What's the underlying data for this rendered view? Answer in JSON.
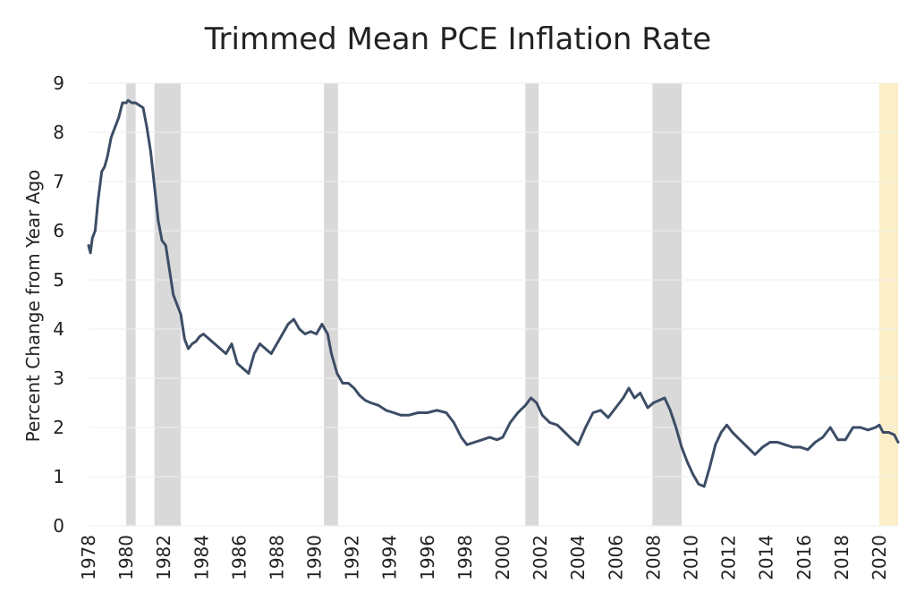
{
  "chart_data": {
    "type": "line",
    "title": "Trimmed Mean PCE Inflation Rate",
    "xlabel": "",
    "ylabel": "Percent Change from Year Ago",
    "xlim": [
      1978.0,
      2021.0
    ],
    "ylim": [
      0,
      9
    ],
    "y_ticks": [
      "0",
      "1",
      "2",
      "3",
      "4",
      "5",
      "6",
      "7",
      "8",
      "9"
    ],
    "x_ticks": [
      "1978",
      "1980",
      "1982",
      "1984",
      "1986",
      "1988",
      "1990",
      "1992",
      "1994",
      "1996",
      "1998",
      "2000",
      "2002",
      "2004",
      "2006",
      "2008",
      "2010",
      "2012",
      "2014",
      "2016",
      "2018",
      "2020"
    ],
    "grid": "horizontal",
    "legend": "none",
    "colors": {
      "line": "#3d4d66",
      "recession": "#d9d9d9",
      "covid": "#fcefc7",
      "grid": "#eeeeee",
      "text": "#222222"
    },
    "shaded_periods": [
      {
        "start": 1980.0,
        "end": 1980.5,
        "kind": "recession"
      },
      {
        "start": 1981.5,
        "end": 1982.9,
        "kind": "recession"
      },
      {
        "start": 1990.5,
        "end": 1991.25,
        "kind": "recession"
      },
      {
        "start": 2001.2,
        "end": 2001.9,
        "kind": "recession"
      },
      {
        "start": 2007.95,
        "end": 2009.5,
        "kind": "recession"
      },
      {
        "start": 2020.0,
        "end": 2021.0,
        "kind": "covid"
      }
    ],
    "series": [
      {
        "x": [
          1978.0,
          1978.1,
          1978.2,
          1978.35,
          1978.5,
          1978.7,
          1978.85,
          1979.0,
          1979.2,
          1979.4,
          1979.6,
          1979.8,
          1980.0,
          1980.1,
          1980.3,
          1980.5,
          1980.7,
          1980.9,
          1981.1,
          1981.3,
          1981.5,
          1981.7,
          1981.9,
          1982.1,
          1982.3,
          1982.5,
          1982.7,
          1982.9,
          1983.1,
          1983.3,
          1983.5,
          1983.7,
          1983.9,
          1984.1,
          1984.4,
          1984.7,
          1985.0,
          1985.3,
          1985.6,
          1985.9,
          1986.2,
          1986.5,
          1986.8,
          1987.1,
          1987.4,
          1987.7,
          1988.0,
          1988.3,
          1988.6,
          1988.9,
          1989.2,
          1989.5,
          1989.8,
          1990.1,
          1990.4,
          1990.7,
          1990.9,
          1991.2,
          1991.5,
          1991.8,
          1992.1,
          1992.4,
          1992.7,
          1993.0,
          1993.4,
          1993.8,
          1994.2,
          1994.6,
          1995.0,
          1995.5,
          1996.0,
          1996.5,
          1997.0,
          1997.4,
          1997.8,
          1998.1,
          1998.5,
          1998.9,
          1999.3,
          1999.7,
          2000.0,
          2000.4,
          2000.8,
          2001.2,
          2001.5,
          2001.8,
          2002.1,
          2002.5,
          2002.9,
          2003.3,
          2003.7,
          2004.0,
          2004.4,
          2004.8,
          2005.2,
          2005.6,
          2006.0,
          2006.4,
          2006.7,
          2007.0,
          2007.3,
          2007.7,
          2008.0,
          2008.3,
          2008.6,
          2008.9,
          2009.2,
          2009.5,
          2009.8,
          2010.1,
          2010.4,
          2010.7,
          2011.0,
          2011.3,
          2011.6,
          2011.9,
          2012.2,
          2012.6,
          2013.0,
          2013.4,
          2013.8,
          2014.2,
          2014.6,
          2015.0,
          2015.4,
          2015.8,
          2016.2,
          2016.6,
          2017.0,
          2017.4,
          2017.8,
          2018.2,
          2018.6,
          2019.0,
          2019.4,
          2019.8,
          2020.0,
          2020.2,
          2020.5,
          2020.8,
          2021.0
        ],
        "values": [
          5.7,
          5.55,
          5.85,
          6.0,
          6.6,
          7.2,
          7.3,
          7.5,
          7.9,
          8.1,
          8.3,
          8.6,
          8.6,
          8.65,
          8.6,
          8.6,
          8.55,
          8.5,
          8.1,
          7.6,
          6.9,
          6.2,
          5.8,
          5.7,
          5.2,
          4.7,
          4.5,
          4.3,
          3.8,
          3.6,
          3.7,
          3.75,
          3.85,
          3.9,
          3.8,
          3.7,
          3.6,
          3.5,
          3.7,
          3.3,
          3.2,
          3.1,
          3.5,
          3.7,
          3.6,
          3.5,
          3.7,
          3.9,
          4.1,
          4.2,
          4.0,
          3.9,
          3.95,
          3.9,
          4.1,
          3.9,
          3.5,
          3.1,
          2.9,
          2.9,
          2.8,
          2.65,
          2.55,
          2.5,
          2.45,
          2.35,
          2.3,
          2.25,
          2.25,
          2.3,
          2.3,
          2.35,
          2.3,
          2.1,
          1.8,
          1.65,
          1.7,
          1.75,
          1.8,
          1.75,
          1.8,
          2.1,
          2.3,
          2.45,
          2.6,
          2.5,
          2.25,
          2.1,
          2.05,
          1.9,
          1.75,
          1.65,
          2.0,
          2.3,
          2.35,
          2.2,
          2.4,
          2.6,
          2.8,
          2.6,
          2.7,
          2.4,
          2.5,
          2.55,
          2.6,
          2.35,
          2.0,
          1.6,
          1.3,
          1.05,
          0.85,
          0.8,
          1.2,
          1.65,
          1.9,
          2.05,
          1.9,
          1.75,
          1.6,
          1.45,
          1.6,
          1.7,
          1.7,
          1.65,
          1.6,
          1.6,
          1.55,
          1.7,
          1.8,
          2.0,
          1.75,
          1.75,
          2.0,
          2.0,
          1.95,
          2.0,
          2.05,
          1.9,
          1.9,
          1.85,
          1.7
        ]
      }
    ]
  }
}
